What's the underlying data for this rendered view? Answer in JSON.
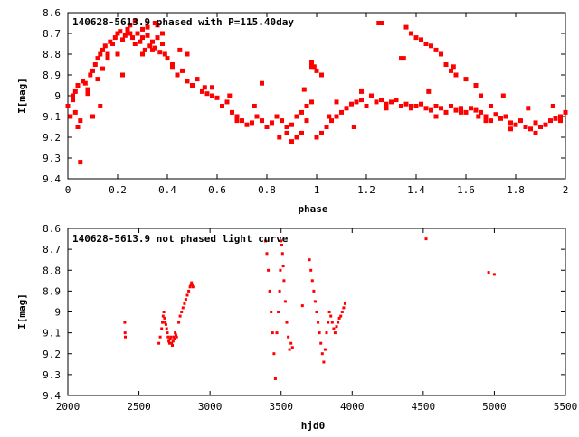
{
  "chart_data": [
    {
      "type": "scatter",
      "title": "140628-5613.9 phased with P=115.40day",
      "xlabel": "phase",
      "ylabel": "I[mag]",
      "xlim": [
        0,
        2
      ],
      "ylim": [
        9.4,
        8.6
      ],
      "y_inverted": true,
      "xticks": [
        0,
        0.2,
        0.4,
        0.6,
        0.8,
        1,
        1.2,
        1.4,
        1.6,
        1.8,
        2
      ],
      "xtick_labels": [
        "0",
        "0.2",
        "0.4",
        "0.6",
        "0.8",
        "1",
        "1.2",
        "1.4",
        "1.6",
        "1.8",
        "2"
      ],
      "yticks": [
        8.6,
        8.7,
        8.8,
        8.9,
        9,
        9.1,
        9.2,
        9.3,
        9.4
      ],
      "ytick_labels": [
        "8.6",
        "8.7",
        "8.8",
        "8.9",
        "9",
        "9.1",
        "9.2",
        "9.3",
        "9.4"
      ],
      "grid": false,
      "legend": "none",
      "marker_color": "#ff0000",
      "series": [
        {
          "x": [
            0.0,
            0.01,
            0.02,
            0.03,
            0.04,
            0.05,
            0.06,
            0.07,
            0.08,
            0.09,
            0.1,
            0.11,
            0.12,
            0.13,
            0.14,
            0.15,
            0.16,
            0.17,
            0.18,
            0.19,
            0.2,
            0.21,
            0.22,
            0.23,
            0.24,
            0.25,
            0.26,
            0.27,
            0.28,
            0.29,
            0.3,
            0.31,
            0.32,
            0.33,
            0.34,
            0.35,
            0.36,
            0.37,
            0.38,
            0.39,
            0.4,
            0.42,
            0.44,
            0.46,
            0.48,
            0.5,
            0.52,
            0.54,
            0.56,
            0.58,
            0.6,
            0.62,
            0.64,
            0.66,
            0.68,
            0.7,
            0.72,
            0.74,
            0.76,
            0.78,
            0.8,
            0.82,
            0.84,
            0.86,
            0.88,
            0.9,
            0.92,
            0.94,
            0.96,
            0.98,
            1.0,
            1.02,
            1.04,
            1.06,
            1.08,
            1.1,
            1.12,
            1.14,
            1.16,
            1.18,
            1.2,
            1.22,
            1.24,
            1.26,
            1.28,
            1.3,
            1.32,
            1.34,
            1.36,
            1.38,
            1.4,
            1.42,
            1.44,
            1.46,
            1.48,
            1.5,
            1.52,
            1.54,
            1.56,
            1.58,
            1.6,
            1.62,
            1.64,
            1.66,
            1.68,
            1.7,
            1.72,
            1.74,
            1.76,
            1.78,
            1.8,
            1.82,
            1.84,
            1.86,
            1.88,
            1.9,
            1.92,
            1.94,
            1.96,
            1.98,
            2.0,
            0.05,
            0.04,
            0.1,
            0.13,
            0.2,
            0.22,
            0.25,
            0.3,
            0.35,
            0.38,
            0.45,
            0.55,
            0.65,
            0.75,
            0.85,
            0.95,
            1.05,
            1.15,
            1.25,
            1.35,
            1.45,
            1.55,
            1.65,
            1.75,
            1.85,
            1.95,
            0.27,
            0.32,
            0.42,
            0.48,
            0.58,
            0.68,
            0.78,
            0.88,
            0.98,
            1.08,
            1.18,
            1.28,
            1.38,
            1.48,
            1.58,
            1.68,
            1.78,
            1.88,
            1.98,
            0.98,
            1.0,
            1.02,
            1.26,
            1.34,
            1.36,
            1.38,
            1.4,
            1.42,
            1.44,
            1.46,
            1.48,
            1.5,
            1.52,
            1.54,
            1.56,
            1.6,
            1.64,
            1.66,
            1.7,
            0.3,
            0.34,
            0.36,
            0.24,
            0.18,
            0.16,
            0.14,
            0.12,
            0.08,
            0.02,
            0.03,
            0.92,
            0.94,
            0.9,
            0.96,
            0.99
          ],
          "y": [
            9.05,
            9.1,
            9.0,
            8.98,
            8.95,
            9.12,
            8.93,
            8.94,
            8.99,
            8.9,
            8.88,
            8.85,
            8.82,
            8.8,
            8.78,
            8.76,
            8.8,
            8.74,
            8.75,
            8.72,
            8.7,
            8.69,
            8.73,
            8.71,
            8.68,
            8.7,
            8.72,
            8.75,
            8.7,
            8.74,
            8.72,
            8.78,
            8.71,
            8.76,
            8.74,
            8.77,
            8.72,
            8.79,
            8.75,
            8.8,
            8.82,
            8.86,
            8.9,
            8.88,
            8.93,
            8.95,
            8.92,
            8.98,
            8.99,
            9.0,
            9.01,
            9.05,
            9.03,
            9.08,
            9.1,
            9.12,
            9.14,
            9.13,
            9.1,
            9.12,
            9.15,
            9.13,
            9.1,
            9.12,
            9.15,
            9.14,
            9.1,
            9.08,
            9.05,
            9.03,
            9.2,
            9.18,
            9.15,
            9.12,
            9.1,
            9.08,
            9.06,
            9.04,
            9.03,
            9.02,
            9.05,
            9.0,
            9.03,
            9.02,
            9.04,
            9.03,
            9.02,
            9.05,
            9.04,
            9.06,
            9.05,
            9.04,
            9.06,
            9.07,
            9.05,
            9.06,
            9.08,
            9.05,
            9.07,
            9.06,
            9.08,
            9.06,
            9.07,
            9.08,
            9.1,
            9.12,
            9.09,
            9.11,
            9.1,
            9.13,
            9.14,
            9.12,
            9.15,
            9.16,
            9.13,
            9.15,
            9.14,
            9.12,
            9.11,
            9.1,
            9.08,
            9.32,
            9.15,
            9.1,
            9.05,
            8.8,
            8.9,
            8.66,
            8.68,
            8.65,
            8.7,
            8.78,
            8.96,
            9.0,
            9.05,
            9.2,
            8.97,
            9.1,
            9.15,
            8.65,
            8.82,
            8.98,
            8.86,
            9.1,
            9.0,
            9.06,
            9.05,
            8.64,
            8.67,
            8.85,
            8.8,
            8.96,
            9.12,
            8.94,
            9.18,
            8.86,
            9.03,
            8.98,
            9.06,
            9.05,
            9.1,
            9.08,
            9.12,
            9.16,
            9.18,
            9.12,
            8.84,
            8.88,
            8.9,
            8.65,
            8.82,
            8.67,
            8.7,
            8.72,
            8.73,
            8.75,
            8.76,
            8.78,
            8.8,
            8.85,
            8.88,
            8.9,
            8.92,
            8.95,
            9.0,
            9.05,
            8.8,
            8.78,
            8.66,
            8.7,
            8.75,
            8.82,
            8.87,
            8.92,
            8.97,
            9.02,
            9.08,
            9.2,
            9.18,
            9.22,
            9.12,
            8.86
          ]
        }
      ]
    },
    {
      "type": "scatter",
      "title": "140628-5613.9 not phased light curve",
      "xlabel": "hjd0",
      "ylabel": "I[mag]",
      "xlim": [
        2000,
        5500
      ],
      "ylim": [
        9.4,
        8.6
      ],
      "y_inverted": true,
      "xticks": [
        2000,
        2500,
        3000,
        3500,
        4000,
        4500,
        5000,
        5500
      ],
      "xtick_labels": [
        "2000",
        "2500",
        "3000",
        "3500",
        "4000",
        "4500",
        "5000",
        "5500"
      ],
      "yticks": [
        8.6,
        8.7,
        8.8,
        8.9,
        9,
        9.1,
        9.2,
        9.3,
        9.4
      ],
      "ytick_labels": [
        "8.6",
        "8.7",
        "8.8",
        "8.9",
        "9",
        "9.1",
        "9.2",
        "9.3",
        "9.4"
      ],
      "grid": false,
      "legend": "none",
      "marker_color": "#ff0000",
      "series": [
        {
          "x": [
            2400,
            2402,
            2404,
            2640,
            2650,
            2660,
            2665,
            2670,
            2675,
            2680,
            2685,
            2690,
            2695,
            2700,
            2705,
            2710,
            2715,
            2720,
            2725,
            2730,
            2735,
            2740,
            2745,
            2750,
            2755,
            2760,
            2765,
            2780,
            2790,
            2800,
            2810,
            2820,
            2830,
            2840,
            2850,
            2860,
            2865,
            2870,
            2875,
            2880,
            3390,
            3400,
            3410,
            3420,
            3430,
            3440,
            3450,
            3460,
            3470,
            3480,
            3490,
            3495,
            3500,
            3505,
            3510,
            3515,
            3520,
            3530,
            3540,
            3550,
            3560,
            3570,
            3580,
            3650,
            3700,
            3710,
            3720,
            3730,
            3740,
            3750,
            3760,
            3770,
            3780,
            3790,
            3800,
            3810,
            3820,
            3830,
            3840,
            3850,
            3860,
            3870,
            3880,
            3890,
            3900,
            3910,
            3920,
            3930,
            3940,
            3950,
            4520,
            4960,
            5000
          ],
          "y": [
            9.05,
            9.1,
            9.12,
            9.15,
            9.12,
            9.08,
            9.05,
            9.02,
            9.0,
            9.03,
            9.05,
            9.06,
            9.08,
            9.1,
            9.12,
            9.14,
            9.15,
            9.13,
            9.12,
            9.15,
            9.16,
            9.14,
            9.12,
            9.13,
            9.1,
            9.11,
            9.12,
            9.05,
            9.02,
            9.0,
            8.98,
            8.96,
            8.94,
            8.92,
            8.9,
            8.88,
            8.87,
            8.86,
            8.87,
            8.88,
            8.66,
            8.72,
            8.8,
            8.9,
            9.0,
            9.1,
            9.2,
            9.32,
            9.1,
            9.0,
            8.9,
            8.8,
            8.66,
            8.68,
            8.72,
            8.78,
            8.85,
            8.95,
            9.05,
            9.12,
            9.18,
            9.15,
            9.17,
            8.97,
            8.75,
            8.8,
            8.85,
            8.9,
            8.95,
            9.0,
            9.05,
            9.1,
            9.15,
            9.2,
            9.24,
            9.18,
            9.1,
            9.05,
            9.0,
            9.02,
            9.05,
            9.08,
            9.1,
            9.07,
            9.05,
            9.03,
            9.02,
            9.0,
            8.98,
            8.96,
            8.65,
            8.81,
            8.82
          ]
        }
      ]
    }
  ]
}
